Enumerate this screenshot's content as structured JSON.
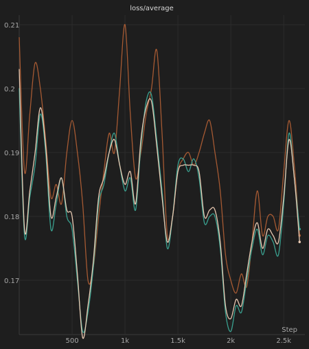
{
  "chart_data": {
    "type": "line",
    "title": "loss/average",
    "xlabel": "Step",
    "ylabel": "",
    "xlim": [
      0,
      2700
    ],
    "ylim": [
      0.1615,
      0.2115
    ],
    "x_ticks": [
      500,
      1000,
      1500,
      2000,
      2500
    ],
    "x_tick_labels": [
      "500",
      "1k",
      "1.5k",
      "2k",
      "2.5k"
    ],
    "y_ticks": [
      0.17,
      0.18,
      0.19,
      0.2,
      0.21
    ],
    "y_tick_labels": [
      "0.17",
      "0.18",
      "0.19",
      "0.2",
      "0.21"
    ],
    "grid": true,
    "legend": "none",
    "series": [
      {
        "color": "#a65a33",
        "x": [
          0,
          50,
          100,
          150,
          200,
          250,
          300,
          350,
          400,
          450,
          500,
          550,
          600,
          650,
          700,
          750,
          800,
          850,
          900,
          950,
          1000,
          1050,
          1100,
          1150,
          1200,
          1250,
          1300,
          1350,
          1400,
          1450,
          1500,
          1550,
          1600,
          1650,
          1700,
          1750,
          1800,
          1850,
          1900,
          1950,
          2000,
          2050,
          2100,
          2150,
          2200,
          2250,
          2300,
          2350,
          2400,
          2450,
          2500,
          2550,
          2600,
          2650
        ],
        "y": [
          0.208,
          0.187,
          0.196,
          0.204,
          0.2,
          0.192,
          0.183,
          0.185,
          0.182,
          0.19,
          0.195,
          0.19,
          0.182,
          0.17,
          0.172,
          0.18,
          0.187,
          0.193,
          0.19,
          0.2,
          0.21,
          0.196,
          0.186,
          0.19,
          0.196,
          0.2,
          0.206,
          0.193,
          0.177,
          0.18,
          0.187,
          0.189,
          0.19,
          0.188,
          0.19,
          0.193,
          0.195,
          0.19,
          0.184,
          0.174,
          0.17,
          0.168,
          0.171,
          0.169,
          0.176,
          0.184,
          0.177,
          0.18,
          0.18,
          0.178,
          0.187,
          0.195,
          0.188,
          0.177
        ]
      },
      {
        "color": "#3aa190",
        "x": [
          0,
          50,
          100,
          150,
          200,
          250,
          300,
          350,
          400,
          450,
          500,
          550,
          600,
          650,
          700,
          750,
          800,
          850,
          900,
          950,
          1000,
          1050,
          1100,
          1150,
          1200,
          1250,
          1300,
          1350,
          1400,
          1450,
          1500,
          1550,
          1600,
          1650,
          1700,
          1750,
          1800,
          1850,
          1900,
          1950,
          2000,
          2050,
          2100,
          2150,
          2200,
          2250,
          2300,
          2350,
          2400,
          2450,
          2500,
          2550,
          2600,
          2650
        ],
        "y": [
          0.2,
          0.177,
          0.183,
          0.188,
          0.196,
          0.19,
          0.178,
          0.182,
          0.186,
          0.18,
          0.178,
          0.17,
          0.162,
          0.165,
          0.172,
          0.182,
          0.185,
          0.19,
          0.193,
          0.188,
          0.184,
          0.186,
          0.181,
          0.191,
          0.198,
          0.199,
          0.192,
          0.184,
          0.175,
          0.18,
          0.188,
          0.189,
          0.187,
          0.189,
          0.186,
          0.179,
          0.18,
          0.18,
          0.175,
          0.165,
          0.162,
          0.166,
          0.165,
          0.17,
          0.175,
          0.178,
          0.174,
          0.177,
          0.176,
          0.174,
          0.182,
          0.193,
          0.186,
          0.178
        ]
      },
      {
        "color": "#e8c9b2",
        "x": [
          0,
          50,
          100,
          150,
          200,
          250,
          300,
          350,
          400,
          450,
          500,
          550,
          600,
          650,
          700,
          750,
          800,
          850,
          900,
          950,
          1000,
          1050,
          1100,
          1150,
          1200,
          1250,
          1300,
          1350,
          1400,
          1450,
          1500,
          1550,
          1600,
          1650,
          1700,
          1750,
          1800,
          1850,
          1900,
          1950,
          2000,
          2050,
          2100,
          2150,
          2200,
          2250,
          2300,
          2350,
          2400,
          2450,
          2500,
          2550,
          2600,
          2650
        ],
        "y": [
          0.203,
          0.178,
          0.184,
          0.19,
          0.197,
          0.191,
          0.18,
          0.183,
          0.186,
          0.181,
          0.18,
          0.171,
          0.161,
          0.166,
          0.173,
          0.183,
          0.186,
          0.19,
          0.192,
          0.188,
          0.185,
          0.187,
          0.182,
          0.192,
          0.197,
          0.198,
          0.191,
          0.183,
          0.176,
          0.18,
          0.187,
          0.188,
          0.188,
          0.188,
          0.187,
          0.18,
          0.181,
          0.181,
          0.176,
          0.166,
          0.164,
          0.167,
          0.166,
          0.171,
          0.176,
          0.179,
          0.175,
          0.178,
          0.177,
          0.176,
          0.183,
          0.192,
          0.186,
          0.176
        ]
      }
    ]
  }
}
